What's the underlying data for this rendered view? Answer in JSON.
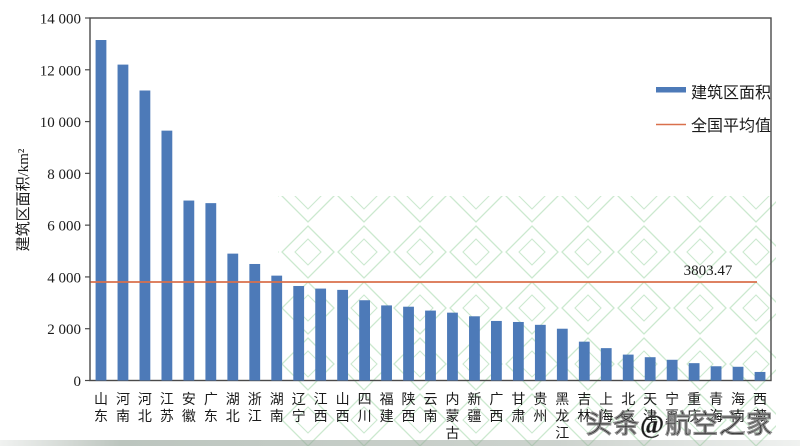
{
  "figure": {
    "watermark_text": "头条@航空之家",
    "colors": {
      "bar": "#4d7ab8",
      "average_line": "#d9704c",
      "axis": "#4a4a4a",
      "watermark_green": "#96d29e",
      "watermark_text_color": "#9c9c9c"
    }
  },
  "chart_data": {
    "type": "bar",
    "title": "",
    "xlabel": "",
    "ylabel": "建筑区面积/km²",
    "ylim": [
      0,
      14000
    ],
    "ytick_step": 2000,
    "ytick_labels": [
      "0",
      "2 000",
      "4 000",
      "6 000",
      "8 000",
      "10 000",
      "12 000",
      "14 000"
    ],
    "grid": false,
    "legend_position": "upper right",
    "legend": [
      {
        "label": "建筑区面积",
        "type": "bar",
        "color": "#4d7ab8"
      },
      {
        "label": "全国平均值",
        "type": "line",
        "color": "#d9704c"
      }
    ],
    "categories": [
      "山东",
      "河南",
      "河北",
      "江苏",
      "安徽",
      "广东",
      "湖北",
      "浙江",
      "湖南",
      "辽宁",
      "江西",
      "山西",
      "四川",
      "福建",
      "陕西",
      "云南",
      "内蒙古",
      "新疆",
      "广西",
      "甘肃",
      "贵州",
      "黑龙江",
      "吉林",
      "上海",
      "北京",
      "天津",
      "宁夏",
      "重庆",
      "青海",
      "海南",
      "西藏"
    ],
    "series": [
      {
        "name": "建筑区面积",
        "values": [
          13150,
          12200,
          11200,
          9650,
          6950,
          6850,
          4900,
          4500,
          4050,
          3650,
          3550,
          3500,
          3100,
          2900,
          2850,
          2700,
          2620,
          2480,
          2300,
          2260,
          2150,
          2000,
          1500,
          1250,
          1000,
          900,
          800,
          670,
          550,
          530,
          330
        ]
      }
    ],
    "average_line": {
      "label": "全国平均值",
      "value": 3803.47,
      "annotation": "3803.47"
    }
  }
}
